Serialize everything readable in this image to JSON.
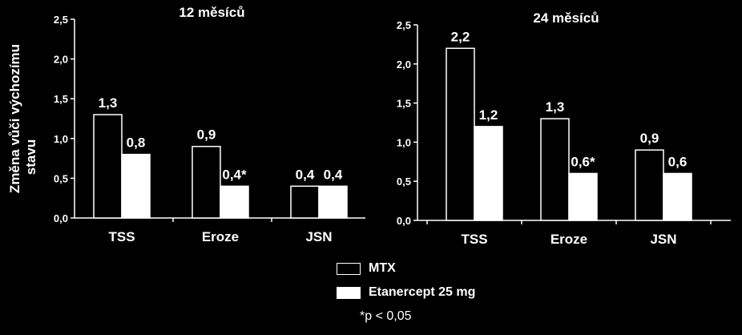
{
  "chart_data": {
    "type": "bar",
    "ylabel": "Změna vůči výchozímu stavu",
    "ylim": [
      0,
      2.5
    ],
    "yticks": [
      "0,0",
      "0,5",
      "1,0",
      "1,5",
      "2,0",
      "2,5"
    ],
    "panels": [
      {
        "title": "12 měsíců",
        "categories": [
          "TSS",
          "Eroze",
          "JSN"
        ],
        "series": [
          {
            "name": "MTX",
            "values": [
              1.3,
              0.9,
              0.4
            ],
            "labels": [
              "1,3",
              "0,9",
              "0,4"
            ]
          },
          {
            "name": "Etanercept 25 mg",
            "values": [
              0.8,
              0.4,
              0.4
            ],
            "labels": [
              "0,8",
              "0,4*",
              "0,4"
            ]
          }
        ]
      },
      {
        "title": "24 měsíců",
        "categories": [
          "TSS",
          "Eroze",
          "JSN"
        ],
        "series": [
          {
            "name": "MTX",
            "values": [
              2.2,
              1.3,
              0.9
            ],
            "labels": [
              "2,2",
              "1,3",
              "0,9"
            ]
          },
          {
            "name": "Etanercept 25 mg",
            "values": [
              1.2,
              0.6,
              0.6
            ],
            "labels": [
              "1,2",
              "0,6*",
              "0,6"
            ]
          }
        ]
      }
    ]
  },
  "legend": {
    "mtx": "MTX",
    "etanercept": "Etanercept 25 mg"
  },
  "footnote": "*p < 0,05",
  "colors": {
    "background": "#000000",
    "mtx_fill": "#000000",
    "etanercept_fill": "#ffffff",
    "stroke": "#ffffff"
  }
}
